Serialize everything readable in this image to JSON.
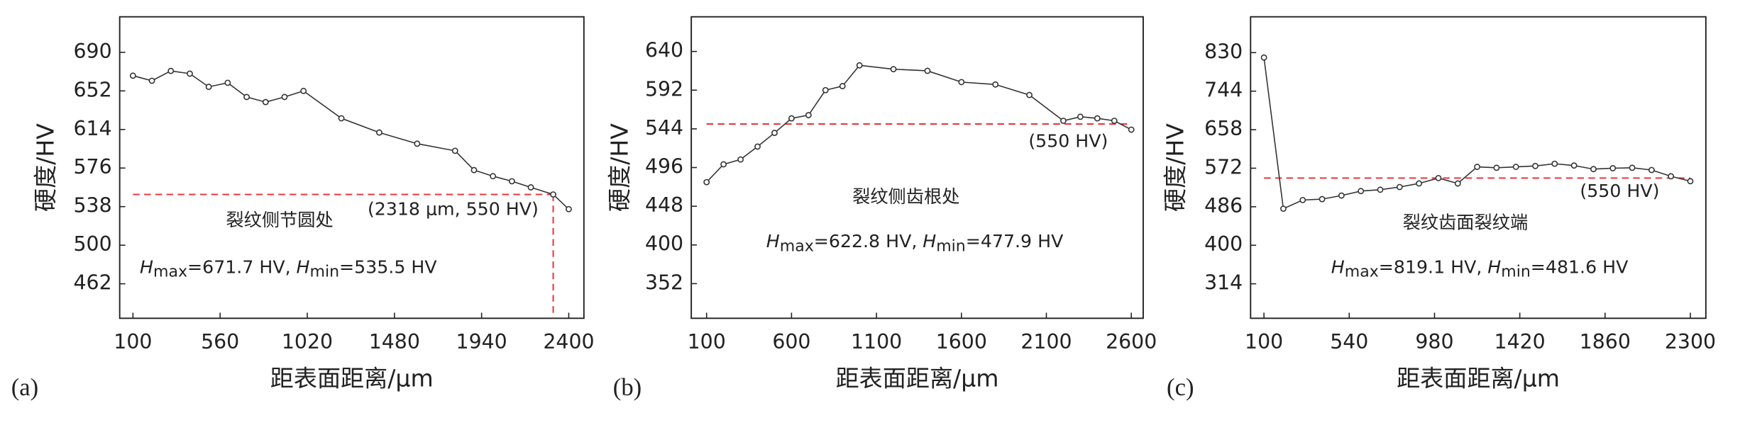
{
  "chart_data": [
    {
      "type": "line",
      "panel_label": "(a)",
      "x_label": "距表面距离/μm",
      "y_label": "硬度/HV",
      "annotations": [
        "裂纹侧节圆处",
        "(2318 μm, 550 HV)"
      ],
      "stats": [
        {
          "symbol": "H",
          "sub": "max",
          "text": "=671.7 HV,"
        },
        {
          "symbol": "H",
          "sub": "min",
          "text": "=535.5 HV"
        }
      ],
      "x": [
        100,
        200,
        300,
        400,
        500,
        600,
        700,
        800,
        900,
        1000,
        1200,
        1400,
        1600,
        1800,
        1900,
        2000,
        2100,
        2200,
        2318,
        2400
      ],
      "values": [
        667,
        662,
        671.7,
        669,
        656,
        660,
        646,
        641,
        646,
        652,
        625,
        611,
        600,
        593,
        574,
        568,
        563,
        557,
        550,
        535.5
      ],
      "color": "#333333",
      "reference": {
        "y": 550,
        "x": 2318,
        "color": "#e8383d"
      },
      "xlim": [
        30,
        2480
      ],
      "xticks": [
        100,
        560,
        1020,
        1480,
        1940,
        2400
      ],
      "ylim": [
        428,
        725
      ],
      "yticks": [
        462,
        500,
        538,
        576,
        614,
        652,
        690
      ]
    },
    {
      "type": "line",
      "panel_label": "(b)",
      "x_label": "距表面距离/μm",
      "y_label": "硬度/HV",
      "annotations": [
        "裂纹侧齿根处",
        "(550 HV)"
      ],
      "stats": [
        {
          "symbol": "H",
          "sub": "max",
          "text": "=622.8 HV,"
        },
        {
          "symbol": "H",
          "sub": "min",
          "text": "=477.9 HV"
        }
      ],
      "x": [
        100,
        200,
        300,
        400,
        500,
        600,
        700,
        800,
        900,
        1000,
        1200,
        1400,
        1600,
        1800,
        2000,
        2200,
        2300,
        2400,
        2500,
        2600
      ],
      "values": [
        477.9,
        500,
        506,
        522,
        539,
        557,
        561,
        592,
        597,
        622.8,
        618,
        616,
        602,
        599,
        586,
        554,
        559,
        557,
        554,
        543
      ],
      "color": "#333333",
      "reference": {
        "y": 550,
        "color": "#e8383d"
      },
      "xlim": [
        10,
        2670
      ],
      "xticks": [
        100,
        600,
        1100,
        1600,
        2100,
        2600
      ],
      "ylim": [
        309,
        683
      ],
      "yticks": [
        352,
        400,
        448,
        496,
        544,
        592,
        640
      ]
    },
    {
      "type": "line",
      "panel_label": "(c)",
      "x_label": "距表面距离/μm",
      "y_label": "硬度/HV",
      "annotations": [
        "裂纹齿面裂纹端",
        "(550 HV)"
      ],
      "stats": [
        {
          "symbol": "H",
          "sub": "max",
          "text": "=819.1 HV,"
        },
        {
          "symbol": "H",
          "sub": "min",
          "text": "=481.6 HV"
        }
      ],
      "x": [
        100,
        200,
        300,
        400,
        500,
        600,
        700,
        800,
        900,
        1000,
        1100,
        1200,
        1300,
        1400,
        1500,
        1600,
        1700,
        1800,
        1900,
        2000,
        2100,
        2200,
        2300
      ],
      "values": [
        819.1,
        481.6,
        501,
        503,
        511,
        521,
        524,
        530,
        538,
        550,
        538,
        575,
        573,
        575,
        577,
        582,
        578,
        570,
        572,
        573,
        568,
        554,
        543
      ],
      "color": "#333333",
      "reference": {
        "y": 550,
        "color": "#e8383d"
      },
      "xlim": [
        31,
        2380
      ],
      "xticks": [
        100,
        540,
        980,
        1420,
        1860,
        2300
      ],
      "ylim": [
        237,
        910
      ],
      "yticks": [
        314,
        400,
        486,
        572,
        658,
        744,
        830
      ]
    }
  ]
}
